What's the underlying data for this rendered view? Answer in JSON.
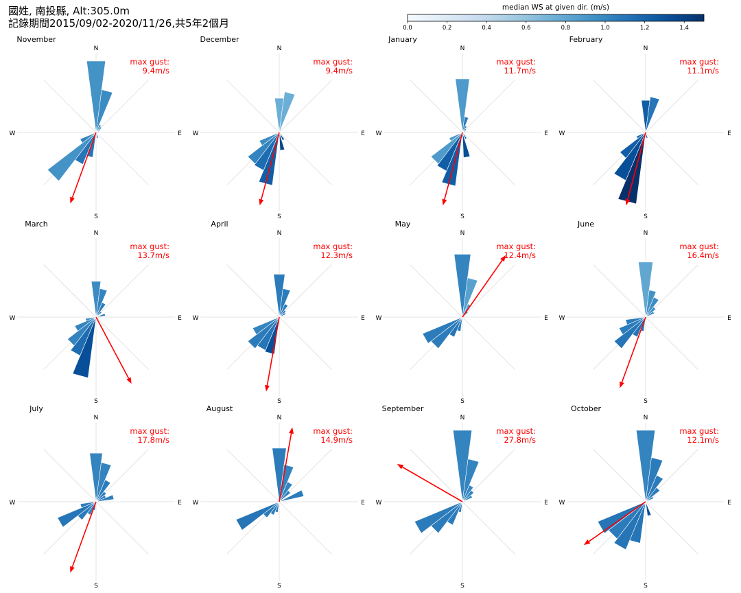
{
  "header": {
    "line1": "國姓, 南投縣, Alt:305.0m",
    "line2": "記錄期間2015/09/02-2020/11/26,共5年2個月"
  },
  "colorbar": {
    "label": "median WS at given dir. (m/s)",
    "ticks": [
      "0.0",
      "0.2",
      "0.4",
      "0.6",
      "0.8",
      "1.0",
      "1.2",
      "1.4"
    ],
    "min": 0,
    "max": 1.5,
    "color_low": "#f7fbff",
    "color_high": "#08306b"
  },
  "cardinals": {
    "n": "N",
    "s": "S",
    "e": "E",
    "w": "W"
  },
  "gust_label": "max gust:",
  "gust_color": "#ff0000",
  "chart_data": {
    "type": "polar-bar",
    "description_units": "direction in degrees clockwise from north; frequency share relative to largest sector; color = median wind speed (m/s)",
    "panels": [
      {
        "month": "November",
        "max_gust_text": "9.4m/s",
        "gust_dir": 200,
        "sectors": [
          {
            "dir": 0,
            "freq": 1.0,
            "ws": 0.85
          },
          {
            "dir": 15,
            "freq": 0.6,
            "ws": 0.9
          },
          {
            "dir": 30,
            "freq": 0.12,
            "ws": 0.9
          },
          {
            "dir": 45,
            "freq": 0.1,
            "ws": 0.9
          },
          {
            "dir": 60,
            "freq": 0.06,
            "ws": 0.9
          },
          {
            "dir": 165,
            "freq": 0.08,
            "ws": 1.3
          },
          {
            "dir": 195,
            "freq": 0.35,
            "ws": 1.05
          },
          {
            "dir": 210,
            "freq": 0.48,
            "ws": 1.05
          },
          {
            "dir": 225,
            "freq": 0.85,
            "ws": 0.85
          },
          {
            "dir": 240,
            "freq": 0.24,
            "ws": 0.95
          }
        ]
      },
      {
        "month": "December",
        "max_gust_text": "9.4m/s",
        "gust_dir": 195,
        "sectors": [
          {
            "dir": 0,
            "freq": 0.48,
            "ws": 0.65
          },
          {
            "dir": 15,
            "freq": 0.57,
            "ws": 0.65
          },
          {
            "dir": 30,
            "freq": 0.05,
            "ws": 0.8
          },
          {
            "dir": 150,
            "freq": 0.12,
            "ws": 1.3
          },
          {
            "dir": 170,
            "freq": 0.25,
            "ws": 1.35
          },
          {
            "dir": 195,
            "freq": 0.74,
            "ws": 1.2
          },
          {
            "dir": 210,
            "freq": 0.57,
            "ws": 1.1
          },
          {
            "dir": 225,
            "freq": 0.55,
            "ws": 0.95
          },
          {
            "dir": 240,
            "freq": 0.3,
            "ws": 0.9
          }
        ]
      },
      {
        "month": "January",
        "max_gust_text": "11.7m/s",
        "gust_dir": 195,
        "sectors": [
          {
            "dir": 0,
            "freq": 0.75,
            "ws": 0.8
          },
          {
            "dir": 15,
            "freq": 0.22,
            "ws": 1.0
          },
          {
            "dir": 30,
            "freq": 0.1,
            "ws": 1.0
          },
          {
            "dir": 45,
            "freq": 0.07,
            "ws": 1.0
          },
          {
            "dir": 60,
            "freq": 0.05,
            "ws": 1.0
          },
          {
            "dir": 150,
            "freq": 0.1,
            "ws": 1.2
          },
          {
            "dir": 170,
            "freq": 0.35,
            "ws": 1.3
          },
          {
            "dir": 195,
            "freq": 0.75,
            "ws": 1.2
          },
          {
            "dir": 210,
            "freq": 0.58,
            "ws": 1.2
          },
          {
            "dir": 225,
            "freq": 0.55,
            "ws": 0.8
          },
          {
            "dir": 240,
            "freq": 0.2,
            "ws": 0.8
          }
        ]
      },
      {
        "month": "February",
        "max_gust_text": "11.1m/s",
        "gust_dir": 195,
        "sectors": [
          {
            "dir": 0,
            "freq": 0.45,
            "ws": 1.2
          },
          {
            "dir": 15,
            "freq": 0.5,
            "ws": 1.05
          },
          {
            "dir": 165,
            "freq": 0.08,
            "ws": 1.3
          },
          {
            "dir": 195,
            "freq": 1.0,
            "ws": 1.5
          },
          {
            "dir": 210,
            "freq": 0.72,
            "ws": 1.3
          },
          {
            "dir": 225,
            "freq": 0.45,
            "ws": 1.2
          },
          {
            "dir": 240,
            "freq": 0.14,
            "ws": 1.1
          }
        ]
      },
      {
        "month": "March",
        "max_gust_text": "13.7m/s",
        "gust_dir": 152,
        "sectors": [
          {
            "dir": 0,
            "freq": 0.5,
            "ws": 0.9
          },
          {
            "dir": 15,
            "freq": 0.4,
            "ws": 0.95
          },
          {
            "dir": 30,
            "freq": 0.22,
            "ws": 1.0
          },
          {
            "dir": 45,
            "freq": 0.1,
            "ws": 1.0
          },
          {
            "dir": 75,
            "freq": 0.13,
            "ws": 1.0
          },
          {
            "dir": 195,
            "freq": 0.85,
            "ws": 1.3
          },
          {
            "dir": 210,
            "freq": 0.58,
            "ws": 1.1
          },
          {
            "dir": 225,
            "freq": 0.5,
            "ws": 0.95
          },
          {
            "dir": 240,
            "freq": 0.32,
            "ws": 0.95
          },
          {
            "dir": 255,
            "freq": 0.15,
            "ws": 0.9
          }
        ]
      },
      {
        "month": "April",
        "max_gust_text": "12.3m/s",
        "gust_dir": 190,
        "sectors": [
          {
            "dir": 0,
            "freq": 0.6,
            "ws": 1.0
          },
          {
            "dir": 15,
            "freq": 0.4,
            "ws": 1.0
          },
          {
            "dir": 30,
            "freq": 0.2,
            "ws": 1.0
          },
          {
            "dir": 45,
            "freq": 0.12,
            "ws": 1.0
          },
          {
            "dir": 60,
            "freq": 0.1,
            "ws": 1.0
          },
          {
            "dir": 195,
            "freq": 0.52,
            "ws": 1.3
          },
          {
            "dir": 210,
            "freq": 0.5,
            "ws": 1.05
          },
          {
            "dir": 225,
            "freq": 0.55,
            "ws": 1.0
          },
          {
            "dir": 240,
            "freq": 0.4,
            "ws": 0.95
          }
        ]
      },
      {
        "month": "May",
        "max_gust_text": "12.4m/s",
        "gust_dir": 35,
        "sectors": [
          {
            "dir": 0,
            "freq": 0.88,
            "ws": 0.95
          },
          {
            "dir": 15,
            "freq": 0.55,
            "ws": 0.75
          },
          {
            "dir": 30,
            "freq": 0.2,
            "ws": 0.75
          },
          {
            "dir": 45,
            "freq": 0.1,
            "ws": 0.8
          },
          {
            "dir": 195,
            "freq": 0.2,
            "ws": 1.0
          },
          {
            "dir": 210,
            "freq": 0.3,
            "ws": 1.05
          },
          {
            "dir": 225,
            "freq": 0.55,
            "ws": 1.0
          },
          {
            "dir": 240,
            "freq": 0.6,
            "ws": 1.0
          }
        ]
      },
      {
        "month": "June",
        "max_gust_text": "16.4m/s",
        "gust_dir": 200,
        "sectors": [
          {
            "dir": 0,
            "freq": 0.77,
            "ws": 0.7
          },
          {
            "dir": 15,
            "freq": 0.38,
            "ws": 0.85
          },
          {
            "dir": 30,
            "freq": 0.3,
            "ws": 0.9
          },
          {
            "dir": 45,
            "freq": 0.18,
            "ws": 0.9
          },
          {
            "dir": 60,
            "freq": 0.13,
            "ws": 0.9
          },
          {
            "dir": 195,
            "freq": 0.2,
            "ws": 1.0
          },
          {
            "dir": 210,
            "freq": 0.3,
            "ws": 1.05
          },
          {
            "dir": 225,
            "freq": 0.55,
            "ws": 1.05
          },
          {
            "dir": 240,
            "freq": 0.4,
            "ws": 1.0
          },
          {
            "dir": 255,
            "freq": 0.28,
            "ws": 1.0
          }
        ]
      },
      {
        "month": "July",
        "max_gust_text": "17.8m/s",
        "gust_dir": 200,
        "sectors": [
          {
            "dir": 0,
            "freq": 0.68,
            "ws": 0.95
          },
          {
            "dir": 15,
            "freq": 0.55,
            "ws": 0.95
          },
          {
            "dir": 30,
            "freq": 0.33,
            "ws": 1.0
          },
          {
            "dir": 45,
            "freq": 0.18,
            "ws": 1.0
          },
          {
            "dir": 60,
            "freq": 0.15,
            "ws": 1.0
          },
          {
            "dir": 75,
            "freq": 0.25,
            "ws": 1.0
          },
          {
            "dir": 195,
            "freq": 0.12,
            "ws": 1.0
          },
          {
            "dir": 210,
            "freq": 0.2,
            "ws": 1.0
          },
          {
            "dir": 225,
            "freq": 0.32,
            "ws": 1.0
          },
          {
            "dir": 240,
            "freq": 0.58,
            "ws": 1.05
          },
          {
            "dir": 255,
            "freq": 0.22,
            "ws": 1.0
          }
        ]
      },
      {
        "month": "August",
        "max_gust_text": "14.9m/s",
        "gust_dir": 10,
        "sectors": [
          {
            "dir": 0,
            "freq": 0.75,
            "ws": 1.0
          },
          {
            "dir": 15,
            "freq": 0.52,
            "ws": 0.95
          },
          {
            "dir": 30,
            "freq": 0.3,
            "ws": 0.95
          },
          {
            "dir": 45,
            "freq": 0.2,
            "ws": 0.95
          },
          {
            "dir": 70,
            "freq": 0.35,
            "ws": 1.0
          },
          {
            "dir": 195,
            "freq": 0.15,
            "ws": 1.0
          },
          {
            "dir": 210,
            "freq": 0.2,
            "ws": 1.0
          },
          {
            "dir": 225,
            "freq": 0.28,
            "ws": 1.0
          },
          {
            "dir": 240,
            "freq": 0.65,
            "ws": 1.05
          }
        ]
      },
      {
        "month": "September",
        "max_gust_text": "27.8m/s",
        "gust_dir": 300,
        "sectors": [
          {
            "dir": 0,
            "freq": 1.0,
            "ws": 0.95
          },
          {
            "dir": 15,
            "freq": 0.6,
            "ws": 0.95
          },
          {
            "dir": 30,
            "freq": 0.25,
            "ws": 0.95
          },
          {
            "dir": 45,
            "freq": 0.2,
            "ws": 0.95
          },
          {
            "dir": 60,
            "freq": 0.15,
            "ws": 0.95
          },
          {
            "dir": 195,
            "freq": 0.15,
            "ws": 1.0
          },
          {
            "dir": 210,
            "freq": 0.35,
            "ws": 1.0
          },
          {
            "dir": 225,
            "freq": 0.55,
            "ws": 1.0
          },
          {
            "dir": 240,
            "freq": 0.72,
            "ws": 1.0
          }
        ]
      },
      {
        "month": "October",
        "max_gust_text": "12.1m/s",
        "gust_dir": 235,
        "sectors": [
          {
            "dir": 0,
            "freq": 1.0,
            "ws": 0.95
          },
          {
            "dir": 15,
            "freq": 0.62,
            "ws": 1.0
          },
          {
            "dir": 30,
            "freq": 0.4,
            "ws": 1.0
          },
          {
            "dir": 45,
            "freq": 0.25,
            "ws": 1.0
          },
          {
            "dir": 60,
            "freq": 0.12,
            "ws": 1.0
          },
          {
            "dir": 165,
            "freq": 0.2,
            "ws": 1.3
          },
          {
            "dir": 195,
            "freq": 0.58,
            "ws": 1.05
          },
          {
            "dir": 210,
            "freq": 0.72,
            "ws": 1.05
          },
          {
            "dir": 225,
            "freq": 0.65,
            "ws": 1.0
          },
          {
            "dir": 240,
            "freq": 0.72,
            "ws": 1.05
          }
        ]
      }
    ]
  }
}
